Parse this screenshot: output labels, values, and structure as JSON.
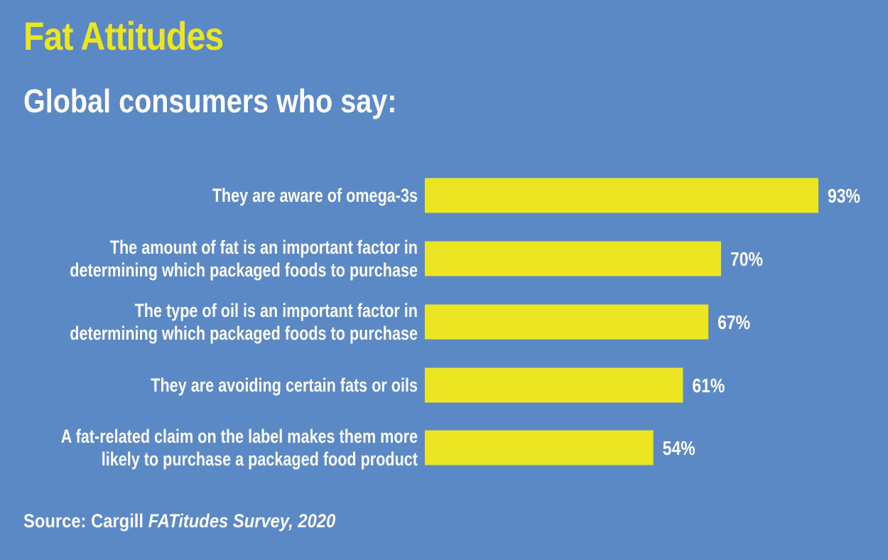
{
  "colors": {
    "background": "#5a89c6",
    "accent": "#ece522",
    "text": "#ffffff"
  },
  "chart_data": {
    "type": "bar",
    "orientation": "horizontal",
    "title": "Fat Attitudes",
    "subtitle": "Global consumers who say:",
    "categories": [
      [
        "They are aware of omega-3s"
      ],
      [
        "The amount of fat is an important factor in",
        "determining which packaged foods to purchase"
      ],
      [
        "The type of oil is an important factor in",
        "determining which packaged foods to purchase"
      ],
      [
        "They are avoiding certain fats or oils"
      ],
      [
        "A fat-related claim on the label makes them more",
        "likely to purchase a packaged food product"
      ]
    ],
    "values": [
      93,
      70,
      67,
      61,
      54
    ],
    "value_labels": [
      "93%",
      "70%",
      "67%",
      "61%",
      "54%"
    ],
    "unit": "%",
    "xlim": [
      0,
      100
    ],
    "grid": false,
    "legend": "none"
  },
  "source": {
    "prefix": "Source: Cargill ",
    "italic": "FATitudes Survey, 2020"
  }
}
